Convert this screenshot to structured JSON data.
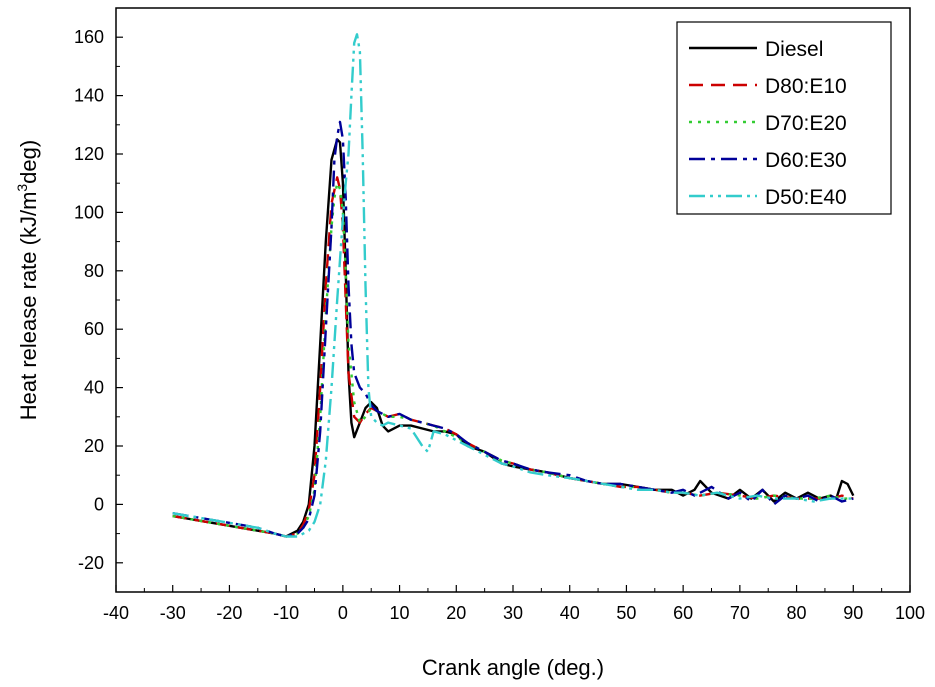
{
  "chart_data": {
    "type": "line",
    "title": "",
    "xlabel": "Crank angle (deg.)",
    "ylabel_main": "Heat release rate (kJ/m",
    "ylabel_sup": "3",
    "ylabel_tail": "deg)",
    "xlim": [
      -40,
      100
    ],
    "ylim": [
      -30,
      170
    ],
    "x_ticks": [
      -40,
      -30,
      -20,
      -10,
      0,
      10,
      20,
      30,
      40,
      50,
      60,
      70,
      80,
      90,
      100
    ],
    "y_ticks": [
      -20,
      0,
      20,
      40,
      60,
      80,
      100,
      120,
      140,
      160
    ],
    "x_tick_labels": [
      "-40",
      "-30",
      "-20",
      "-10",
      "0",
      "10",
      "20",
      "30",
      "40",
      "50",
      "60",
      "70",
      "80",
      "90",
      "100"
    ],
    "y_tick_labels": [
      "-20",
      "0",
      "20",
      "40",
      "60",
      "80",
      "100",
      "120",
      "140",
      "160"
    ],
    "grid": false,
    "legend_position": "top-right",
    "series": [
      {
        "name": "Diesel",
        "color": "#000000",
        "dash": "solid",
        "x": [
          -30,
          -27,
          -24,
          -21,
          -18,
          -15,
          -12,
          -10,
          -8,
          -7,
          -6,
          -5,
          -4,
          -3,
          -2,
          -1,
          -0.5,
          0,
          0.5,
          1,
          1.5,
          2,
          3,
          4,
          5,
          6,
          7,
          8,
          10,
          12,
          14,
          16,
          18,
          20,
          22,
          25,
          28,
          30,
          33,
          36,
          40,
          43,
          46,
          49,
          52,
          55,
          58,
          60,
          62,
          63,
          65,
          68,
          70,
          72,
          74,
          76,
          78,
          80,
          82,
          84,
          86,
          87,
          88,
          89,
          90
        ],
        "y": [
          -4,
          -5,
          -6,
          -7,
          -8,
          -9,
          -10,
          -11,
          -9,
          -6,
          0,
          20,
          55,
          90,
          118,
          125,
          124,
          110,
          80,
          45,
          28,
          23,
          28,
          33,
          35,
          33,
          27,
          25,
          27,
          27,
          26,
          25,
          25,
          24,
          20,
          18,
          14,
          13,
          12,
          11,
          9,
          8,
          7,
          7,
          6,
          5,
          5,
          3,
          5,
          8,
          4,
          2,
          5,
          2,
          5,
          1,
          4,
          2,
          4,
          2,
          3,
          2,
          8,
          7,
          3
        ]
      },
      {
        "name": "D80:E10",
        "color": "#cc0000",
        "dash": "dashed",
        "x": [
          -30,
          -27,
          -24,
          -21,
          -18,
          -15,
          -12,
          -10,
          -8,
          -7,
          -6,
          -5,
          -4,
          -3,
          -2,
          -1,
          -0.5,
          0,
          0.5,
          1,
          2,
          3,
          4,
          5,
          6,
          8,
          10,
          12,
          14,
          16,
          18,
          20,
          22,
          25,
          28,
          30,
          33,
          36,
          40,
          43,
          46,
          49,
          52,
          55,
          58,
          60,
          63,
          66,
          70,
          73,
          76,
          80,
          83,
          86,
          88,
          90
        ],
        "y": [
          -4,
          -5,
          -6,
          -7,
          -8,
          -9,
          -10,
          -11,
          -10,
          -7,
          -2,
          10,
          40,
          75,
          103,
          112,
          108,
          95,
          70,
          45,
          30,
          28,
          31,
          33,
          32,
          30,
          31,
          29,
          28,
          27,
          26,
          24,
          21,
          18,
          15,
          14,
          12,
          11,
          9,
          8,
          7,
          6,
          6,
          5,
          4,
          4,
          3,
          4,
          3,
          2,
          3,
          2,
          2,
          2,
          3,
          2
        ]
      },
      {
        "name": "D70:E20",
        "color": "#33cc33",
        "dash": "dotted",
        "x": [
          -30,
          -27,
          -24,
          -21,
          -18,
          -15,
          -12,
          -10,
          -8,
          -7,
          -6,
          -5,
          -4,
          -3,
          -2,
          -1.5,
          -1,
          -0.5,
          0,
          0.5,
          1,
          2,
          3,
          4,
          5,
          6,
          8,
          10,
          12,
          14,
          16,
          18,
          20,
          22,
          25,
          28,
          30,
          33,
          36,
          40,
          43,
          46,
          49,
          52,
          55,
          58,
          60,
          63,
          66,
          70,
          73,
          76,
          80,
          83,
          86,
          88,
          90
        ],
        "y": [
          -4,
          -5,
          -6,
          -7,
          -8,
          -9,
          -10,
          -11,
          -10,
          -8,
          -4,
          5,
          30,
          65,
          95,
          105,
          110,
          108,
          100,
          80,
          55,
          35,
          28,
          30,
          33,
          32,
          30,
          30,
          29,
          28,
          27,
          25,
          23,
          21,
          18,
          15,
          14,
          12,
          11,
          9,
          8,
          7,
          6,
          6,
          5,
          4,
          4,
          3,
          4,
          3,
          2,
          3,
          2,
          2,
          3,
          2,
          2
        ]
      },
      {
        "name": "D60:E30",
        "color": "#000099",
        "dash": "dashdot",
        "x": [
          -30,
          -27,
          -24,
          -21,
          -18,
          -15,
          -12,
          -10,
          -8,
          -7,
          -6,
          -5,
          -4,
          -3,
          -2,
          -1.5,
          -1,
          -0.5,
          0,
          0.5,
          1,
          1.5,
          2,
          3,
          4,
          5,
          6,
          8,
          10,
          12,
          14,
          16,
          18,
          20,
          22,
          25,
          28,
          30,
          33,
          36,
          40,
          43,
          46,
          49,
          52,
          55,
          58,
          60,
          62,
          65,
          68,
          70,
          72,
          74,
          76,
          78,
          80,
          82,
          84,
          86,
          88,
          90
        ],
        "y": [
          -3,
          -4,
          -5,
          -6,
          -7,
          -8,
          -10,
          -11,
          -10,
          -8,
          -5,
          3,
          25,
          60,
          95,
          118,
          126,
          131,
          125,
          105,
          75,
          55,
          45,
          40,
          38,
          34,
          32,
          30,
          31,
          29,
          28,
          27,
          26,
          24,
          21,
          18,
          15,
          14,
          12,
          11,
          10,
          8,
          7,
          7,
          6,
          5,
          4,
          5,
          3,
          6,
          2,
          4,
          1,
          5,
          0,
          3,
          2,
          3,
          1,
          3,
          1,
          2
        ]
      },
      {
        "name": "D50:E40",
        "color": "#33cccc",
        "dash": "dashdotdot",
        "x": [
          -30,
          -27,
          -24,
          -21,
          -18,
          -15,
          -12,
          -10,
          -8,
          -7,
          -6,
          -5,
          -4,
          -3,
          -2,
          -1,
          0,
          0.5,
          1,
          1.5,
          2,
          2.5,
          3,
          3.5,
          4,
          4.5,
          5,
          6,
          7,
          8,
          10,
          12,
          14,
          15,
          16,
          18,
          20,
          22,
          25,
          28,
          30,
          33,
          36,
          40,
          43,
          46,
          49,
          52,
          55,
          58,
          60,
          63,
          66,
          70,
          73,
          76,
          80,
          83,
          86,
          88,
          90
        ],
        "y": [
          -3,
          -4,
          -5,
          -6,
          -7,
          -8,
          -10,
          -11,
          -11,
          -10,
          -9,
          -6,
          0,
          15,
          40,
          70,
          98,
          110,
          120,
          140,
          158,
          161,
          155,
          120,
          75,
          40,
          30,
          28,
          27,
          28,
          27,
          26,
          20,
          18,
          25,
          24,
          22,
          20,
          17,
          14,
          13,
          11,
          10,
          9,
          8,
          7,
          6,
          5,
          5,
          4,
          4,
          3,
          4,
          2,
          3,
          2,
          2,
          1,
          2,
          2,
          2
        ]
      }
    ]
  }
}
